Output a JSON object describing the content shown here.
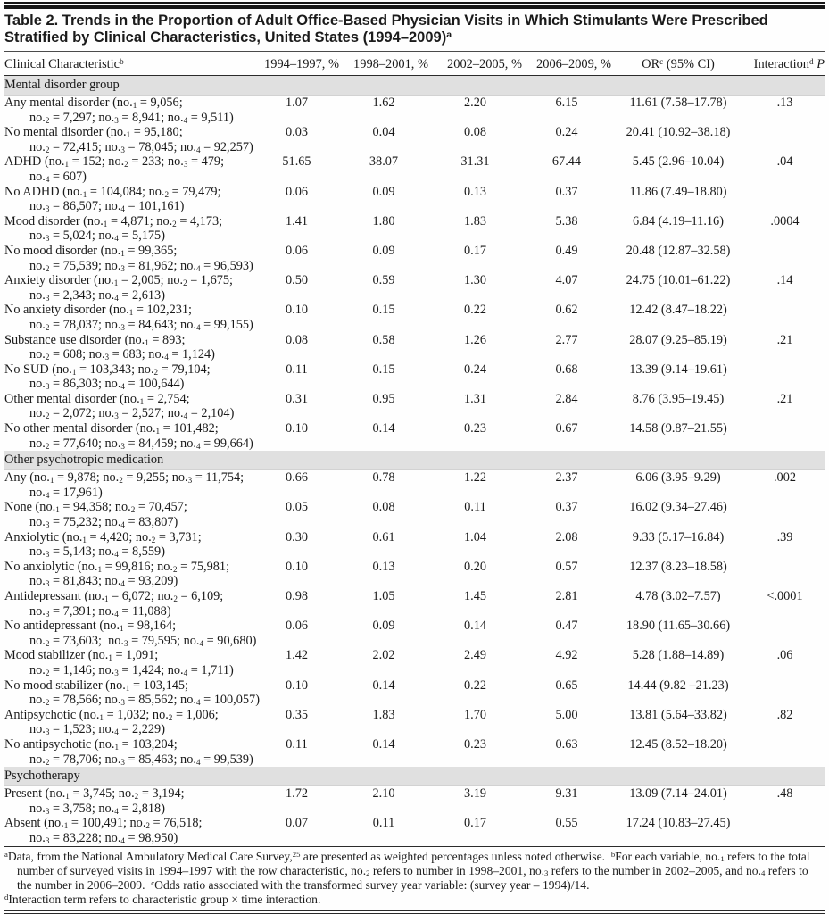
{
  "title": "Table 2. Trends in the Proportion of Adult Office-Based Physician Visits in Which Stimulants Were Prescribed Stratified by Clinical Characteristics, United States (1994–2009)^{a}",
  "table": {
    "columns": [
      "Clinical Characteristic^{b}",
      "1994–1997, %",
      "1998–2001, %",
      "2002–2005, %",
      "2006–2009, %",
      "OR^{c} (95% CI)",
      "Interaction^{d} *{P}"
    ],
    "sections": [
      {
        "header": "Mental disorder group",
        "rows": [
          {
            "label_lines": [
              "Any mental disorder (no._{1} = 9,056;",
              "no._{2} = 7,297; no._{3} = 8,941; no._{4} = 9,511)"
            ],
            "values": [
              "1.07",
              "1.62",
              "2.20",
              "6.15"
            ],
            "or_ci": "11.61 (7.58–17.78)",
            "interaction_p": ".13"
          },
          {
            "label_lines": [
              "No mental disorder (no._{1} = 95,180;",
              "no._{2} = 72,415; no._{3} = 78,045; no._{4} = 92,257)"
            ],
            "values": [
              "0.03",
              "0.04",
              "0.08",
              "0.24"
            ],
            "or_ci": "20.41 (10.92–38.18)",
            "interaction_p": ""
          },
          {
            "label_lines": [
              "ADHD (no._{1} = 152; no._{2} = 233; no._{3} = 479;",
              "no._{4} = 607)"
            ],
            "values": [
              "51.65",
              "38.07",
              "31.31",
              "67.44"
            ],
            "or_ci": "5.45 (2.96–10.04)",
            "interaction_p": ".04"
          },
          {
            "label_lines": [
              "No ADHD (no._{1} = 104,084; no._{2} = 79,479;",
              "no._{3} = 86,507; no._{4} = 101,161)"
            ],
            "values": [
              "0.06",
              "0.09",
              "0.13",
              "0.37"
            ],
            "or_ci": "11.86 (7.49–18.80)",
            "interaction_p": ""
          },
          {
            "label_lines": [
              "Mood disorder (no._{1} = 4,871; no._{2} = 4,173;",
              "no._{3} = 5,024; no._{4} = 5,175)"
            ],
            "values": [
              "1.41",
              "1.80",
              "1.83",
              "5.38"
            ],
            "or_ci": "6.84 (4.19–11.16)",
            "interaction_p": ".0004"
          },
          {
            "label_lines": [
              "No mood disorder (no._{1} = 99,365;",
              "no._{2} = 75,539; no._{3} = 81,962; no._{4} = 96,593)"
            ],
            "values": [
              "0.06",
              "0.09",
              "0.17",
              "0.49"
            ],
            "or_ci": "20.48 (12.87–32.58)",
            "interaction_p": ""
          },
          {
            "label_lines": [
              "Anxiety disorder (no._{1} = 2,005; no._{2} = 1,675;",
              "no._{3} = 2,343; no._{4} = 2,613)"
            ],
            "values": [
              "0.50",
              "0.59",
              "1.30",
              "4.07"
            ],
            "or_ci": "24.75 (10.01–61.22)",
            "interaction_p": ".14"
          },
          {
            "label_lines": [
              "No anxiety disorder (no._{1} = 102,231;",
              "no._{2} = 78,037; no._{3} = 84,643; no._{4} = 99,155)"
            ],
            "values": [
              "0.10",
              "0.15",
              "0.22",
              "0.62"
            ],
            "or_ci": "12.42 (8.47–18.22)",
            "interaction_p": ""
          },
          {
            "label_lines": [
              "Substance use disorder (no._{1} = 893;",
              "no._{2} = 608; no._{3} = 683; no._{4} = 1,124)"
            ],
            "values": [
              "0.08",
              "0.58",
              "1.26",
              "2.77"
            ],
            "or_ci": "28.07 (9.25–85.19)",
            "interaction_p": ".21"
          },
          {
            "label_lines": [
              "No SUD (no._{1} = 103,343; no._{2} = 79,104;",
              "no._{3} = 86,303; no._{4} = 100,644)"
            ],
            "values": [
              "0.11",
              "0.15",
              "0.24",
              "0.68"
            ],
            "or_ci": "13.39 (9.14–19.61)",
            "interaction_p": ""
          },
          {
            "label_lines": [
              "Other mental disorder (no._{1} = 2,754;",
              "no._{2} = 2,072; no._{3} = 2,527; no._{4} = 2,104)"
            ],
            "values": [
              "0.31",
              "0.95",
              "1.31",
              "2.84"
            ],
            "or_ci": "8.76 (3.95–19.45)",
            "interaction_p": ".21"
          },
          {
            "label_lines": [
              "No other mental disorder (no._{1} = 101,482;",
              "no._{2} = 77,640; no._{3} = 84,459; no._{4} = 99,664)"
            ],
            "values": [
              "0.10",
              "0.14",
              "0.23",
              "0.67"
            ],
            "or_ci": "14.58 (9.87–21.55)",
            "interaction_p": ""
          }
        ]
      },
      {
        "header": "Other psychotropic medication",
        "rows": [
          {
            "label_lines": [
              "Any (no._{1} = 9,878; no._{2} = 9,255; no._{3} = 11,754;",
              "no._{4} = 17,961)"
            ],
            "values": [
              "0.66",
              "0.78",
              "1.22",
              "2.37"
            ],
            "or_ci": "6.06 (3.95–9.29)",
            "interaction_p": ".002"
          },
          {
            "label_lines": [
              "None (no._{1} = 94,358; no._{2} = 70,457;",
              "no._{3} = 75,232; no._{4} = 83,807)"
            ],
            "values": [
              "0.05",
              "0.08",
              "0.11",
              "0.37"
            ],
            "or_ci": "16.02 (9.34–27.46)",
            "interaction_p": ""
          },
          {
            "label_lines": [
              "Anxiolytic (no._{1} = 4,420; no._{2} = 3,731;",
              "no._{3} = 5,143; no._{4} = 8,559)"
            ],
            "values": [
              "0.30",
              "0.61",
              "1.04",
              "2.08"
            ],
            "or_ci": "9.33 (5.17–16.84)",
            "interaction_p": ".39"
          },
          {
            "label_lines": [
              "No anxiolytic (no._{1} = 99,816; no._{2} = 75,981;",
              "no._{3} = 81,843; no._{4} = 93,209)"
            ],
            "values": [
              "0.10",
              "0.13",
              "0.20",
              "0.57"
            ],
            "or_ci": "12.37 (8.23–18.58)",
            "interaction_p": ""
          },
          {
            "label_lines": [
              "Antidepressant (no._{1} = 6,072; no._{2} = 6,109;",
              "no._{3} = 7,391; no._{4} = 11,088)"
            ],
            "values": [
              "0.98",
              "1.05",
              "1.45",
              "2.81"
            ],
            "or_ci": "4.78 (3.02–7.57)",
            "interaction_p": "<.0001"
          },
          {
            "label_lines": [
              "No antidepressant (no._{1} = 98,164;",
              "no._{2} = 73,603;  no._{3} = 79,595; no._{4} = 90,680)"
            ],
            "values": [
              "0.06",
              "0.09",
              "0.14",
              "0.47"
            ],
            "or_ci": "18.90 (11.65–30.66)",
            "interaction_p": ""
          },
          {
            "label_lines": [
              "Mood stabilizer (no._{1} = 1,091;",
              "no._{2} = 1,146; no._{3} = 1,424; no._{4} = 1,711)"
            ],
            "values": [
              "1.42",
              "2.02",
              "2.49",
              "4.92"
            ],
            "or_ci": "5.28 (1.88–14.89)",
            "interaction_p": ".06"
          },
          {
            "label_lines": [
              "No mood stabilizer (no._{1} = 103,145;",
              "no._{2} = 78,566; no._{3} = 85,562; no._{4} = 100,057)"
            ],
            "values": [
              "0.10",
              "0.14",
              "0.22",
              "0.65"
            ],
            "or_ci": "14.44 (9.82 –21.23)",
            "interaction_p": ""
          },
          {
            "label_lines": [
              "Antipsychotic (no._{1} = 1,032; no._{2} = 1,006;",
              "no._{3} = 1,523; no._{4} = 2,229)"
            ],
            "values": [
              "0.35",
              "1.83",
              "1.70",
              "5.00"
            ],
            "or_ci": "13.81 (5.64–33.82)",
            "interaction_p": ".82"
          },
          {
            "label_lines": [
              "No antipsychotic (no._{1} = 103,204;",
              "no._{2} = 78,706; no._{3} = 85,463; no._{4} = 99,539)"
            ],
            "values": [
              "0.11",
              "0.14",
              "0.23",
              "0.63"
            ],
            "or_ci": "12.45 (8.52–18.20)",
            "interaction_p": ""
          }
        ]
      },
      {
        "header": "Psychotherapy",
        "rows": [
          {
            "label_lines": [
              "Present (no._{1} = 3,745; no._{2} = 3,194;",
              "no._{3} = 3,758; no._{4} = 2,818)"
            ],
            "values": [
              "1.72",
              "2.10",
              "3.19",
              "9.31"
            ],
            "or_ci": "13.09 (7.14–24.01)",
            "interaction_p": ".48"
          },
          {
            "label_lines": [
              "Absent (no._{1} = 100,491; no._{2} = 76,518;",
              "no._{3} = 83,228; no._{4} = 98,950)"
            ],
            "values": [
              "0.07",
              "0.11",
              "0.17",
              "0.55"
            ],
            "or_ci": "17.24 (10.83–27.45)",
            "interaction_p": ""
          }
        ]
      }
    ]
  },
  "footnotes": [
    {
      "text": "^{a}Data, from the National Ambulatory Medical Care Survey,^{25} are presented as weighted percentages unless noted otherwise.  ^{b}For each variable, no._{1} refers to the total number of surveyed visits in 1994–1997 with the row characteristic, no._{2} refers to number in 1998–2001, no._{3} refers to the number in 2002–2005, and no._{4} refers to the number in 2006–2009.  ^{c}Odds ratio associated with the transformed survey year variable: (survey year – 1994)/14."
    },
    {
      "text": "^{d}Interaction term refers to characteristic group × time interaction."
    }
  ],
  "colors": {
    "section_band": "#e0e0e0",
    "rule": "#171717",
    "text": "#1a1a1a"
  }
}
